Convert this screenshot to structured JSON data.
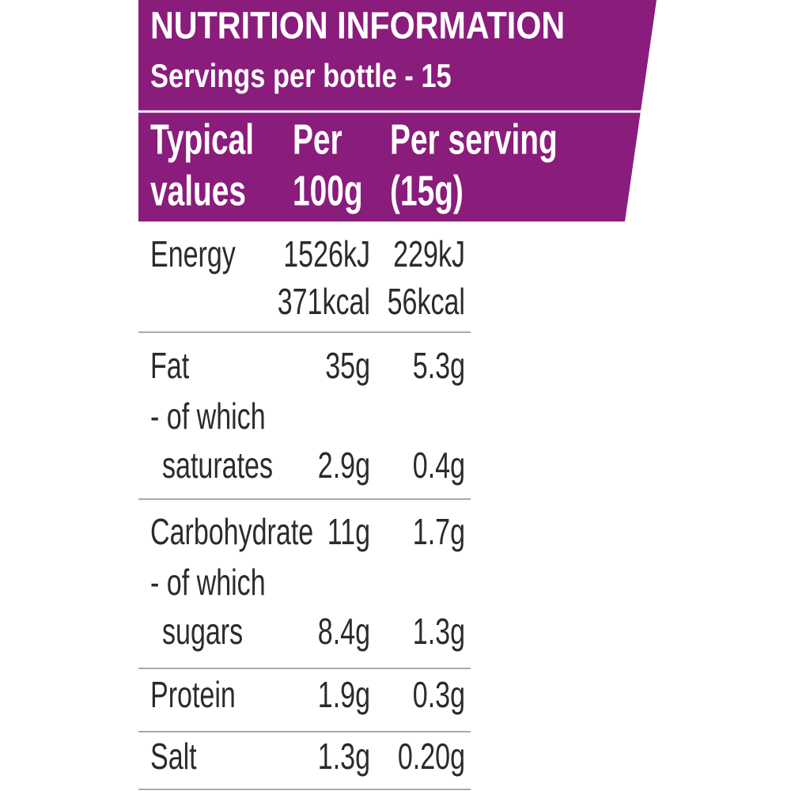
{
  "header": {
    "title": "NUTRITION INFORMATION",
    "subtitle": "Servings per bottle - 15"
  },
  "table": {
    "columns": [
      [
        "Typical",
        "values"
      ],
      [
        "Per",
        "100g"
      ],
      [
        "Per serving",
        "(15g)"
      ]
    ],
    "rows": [
      [
        {
          "label": "Energy",
          "per_100g": "1526kJ",
          "per_serving": "229kJ"
        },
        {
          "per_100g": "371kcal",
          "per_serving": "56kcal"
        }
      ],
      [
        {
          "label": "Fat",
          "per_100g": "35g",
          "per_serving": "5.3g"
        },
        {
          "label": "- of which"
        },
        {
          "label": "saturates",
          "per_100g": "2.9g",
          "per_serving": "0.4g"
        }
      ],
      [
        {
          "label": "Carbohydrate",
          "per_100g": "11g",
          "per_serving": "1.7g"
        },
        {
          "label": "- of which"
        },
        {
          "label": "sugars",
          "per_100g": "8.4g",
          "per_serving": "1.3g"
        }
      ],
      [
        {
          "label": "Protein",
          "per_100g": "1.9g",
          "per_serving": "0.3g"
        }
      ],
      [
        {
          "label": "Salt",
          "per_100g": "1.3g",
          "per_serving": "0.20g"
        }
      ]
    ]
  }
}
